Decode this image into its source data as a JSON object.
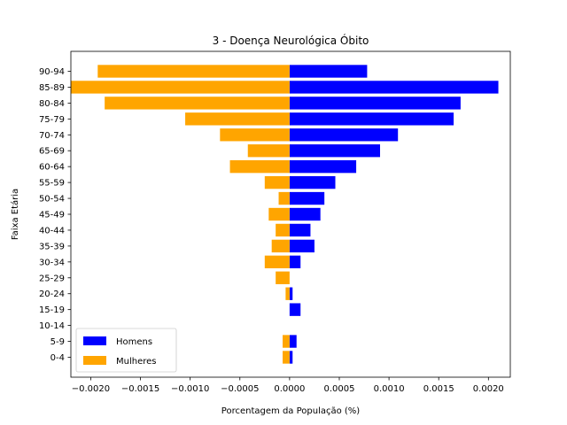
{
  "chart_data": {
    "type": "bar",
    "orientation": "horizontal",
    "title": "3 - Doença Neurológica Óbito",
    "xlabel": "Porcentagem da População (%)",
    "ylabel": "Faixa Etária",
    "xlim": [
      -0.0022,
      0.00222
    ],
    "x_ticks": [
      -0.002,
      -0.0015,
      -0.001,
      -0.0005,
      0.0,
      0.0005,
      0.001,
      0.0015,
      0.002
    ],
    "x_tick_labels": [
      "−0.0020",
      "−0.0015",
      "−0.0010",
      "−0.0005",
      "0.0000",
      "0.0005",
      "0.0010",
      "0.0015",
      "0.0020"
    ],
    "categories": [
      "0-4",
      "5-9",
      "10-14",
      "15-19",
      "20-24",
      "25-29",
      "30-34",
      "35-39",
      "40-44",
      "45-49",
      "50-54",
      "55-59",
      "60-64",
      "65-69",
      "70-74",
      "75-79",
      "80-84",
      "85-89",
      "90-94"
    ],
    "series": [
      {
        "name": "Homens",
        "color": "#0000ff",
        "values": [
          3e-05,
          7e-05,
          0.0,
          0.00011,
          3e-05,
          0.0,
          0.00011,
          0.00025,
          0.00021,
          0.00031,
          0.00035,
          0.00046,
          0.00067,
          0.00091,
          0.00109,
          0.00165,
          0.00172,
          0.0021,
          0.00078
        ]
      },
      {
        "name": "Mulheres",
        "color": "#ffa500",
        "values": [
          -7e-05,
          -7e-05,
          0.0,
          0.0,
          -4e-05,
          -0.00014,
          -0.00025,
          -0.00018,
          -0.00014,
          -0.00021,
          -0.00011,
          -0.00025,
          -0.0006,
          -0.00042,
          -0.0007,
          -0.00105,
          -0.00186,
          -0.0022,
          -0.00193
        ]
      }
    ],
    "legend_position": "lower-left",
    "grid": false
  }
}
